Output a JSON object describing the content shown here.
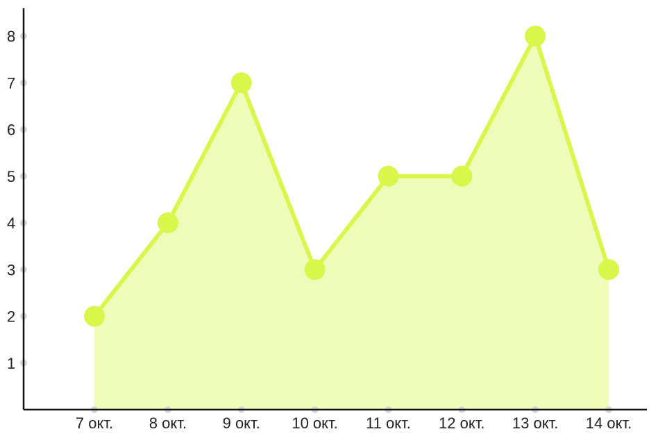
{
  "chart_data": {
    "type": "area",
    "categories": [
      "7 окт.",
      "8 окт.",
      "9 окт.",
      "10 окт.",
      "11 окт.",
      "12 окт.",
      "13 окт.",
      "14 окт."
    ],
    "series": [
      {
        "values": [
          2,
          4,
          7,
          3,
          5,
          5,
          8,
          3
        ]
      }
    ],
    "title": "",
    "xlabel": "",
    "ylabel": "",
    "ylim": [
      0,
      8.6
    ],
    "yticks": [
      1,
      2,
      3,
      4,
      5,
      6,
      7,
      8
    ],
    "grid": false,
    "colors": {
      "line": "#d9f74a",
      "fill": "#eefbb9",
      "marker": "#d9f74a",
      "axis": "#111111",
      "tick_dot": "#d6d6d6"
    }
  }
}
